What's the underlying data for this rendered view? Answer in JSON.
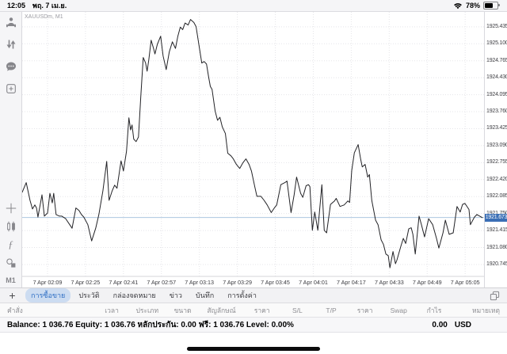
{
  "status_bar": {
    "time": "12:05",
    "date": "พฤ. 7 เม.ย.",
    "battery_percent": "78%"
  },
  "sidebar": {
    "timeframe": "M1",
    "indicator_glyph": "ƒ",
    "icons": [
      "trader-icon",
      "transfer-arrows-icon",
      "chat-icon",
      "new-order-icon",
      "crosshair-icon",
      "chart-type-icon",
      "indicators-icon",
      "objects-icon"
    ]
  },
  "chart": {
    "symbol_label": "XAUUSDm, M1"
  },
  "chart_data": {
    "type": "line",
    "title": "XAUUSDm, M1",
    "xlabel": "",
    "ylabel": "",
    "grid": "dotted",
    "ylim": [
      1920.51,
      1925.73
    ],
    "x_total_minutes": 193.4,
    "current_price": 1921.673,
    "y_ticks": [
      "1925.435",
      "1925.100",
      "1924.765",
      "1924.430",
      "1924.095",
      "1923.760",
      "1923.425",
      "1923.090",
      "1922.755",
      "1922.420",
      "1922.085",
      "1921.750",
      "1921.415",
      "1921.080",
      "1920.745"
    ],
    "x_ticks": [
      {
        "label": "7 Apr 02:09",
        "t": 10.6
      },
      {
        "label": "7 Apr 02:25",
        "t": 26.5
      },
      {
        "label": "7 Apr 02:41",
        "t": 42.4
      },
      {
        "label": "7 Apr 02:57",
        "t": 58.3
      },
      {
        "label": "7 Apr 03:13",
        "t": 74.2
      },
      {
        "label": "7 Apr 03:29",
        "t": 90.1
      },
      {
        "label": "7 Apr 03:45",
        "t": 106.0
      },
      {
        "label": "7 Apr 04:01",
        "t": 121.9
      },
      {
        "label": "7 Apr 04:17",
        "t": 137.8
      },
      {
        "label": "7 Apr 04:33",
        "t": 153.7
      },
      {
        "label": "7 Apr 04:49",
        "t": 169.6
      },
      {
        "label": "7 Apr 05:05",
        "t": 185.5
      }
    ],
    "series": [
      {
        "name": "XAUUSDm bid",
        "points": [
          [
            0,
            1922.17
          ],
          [
            1.7,
            1922.36
          ],
          [
            3.3,
            1922.01
          ],
          [
            4.3,
            1921.84
          ],
          [
            5.3,
            1921.92
          ],
          [
            6,
            1921.86
          ],
          [
            6.6,
            1921.68
          ],
          [
            8.3,
            1922.12
          ],
          [
            9.3,
            1921.7
          ],
          [
            10.6,
            1921.76
          ],
          [
            11.6,
            1922.15
          ],
          [
            12.6,
            1921.96
          ],
          [
            13.2,
            1922.15
          ],
          [
            14.2,
            1921.73
          ],
          [
            15.6,
            1921.7
          ],
          [
            16.6,
            1921.7
          ],
          [
            18.2,
            1921.65
          ],
          [
            19.9,
            1921.53
          ],
          [
            20.9,
            1921.46
          ],
          [
            22.5,
            1921.86
          ],
          [
            23.8,
            1921.81
          ],
          [
            24.8,
            1921.73
          ],
          [
            25.8,
            1921.68
          ],
          [
            27.5,
            1921.53
          ],
          [
            29.1,
            1921.21
          ],
          [
            30.8,
            1921.46
          ],
          [
            32.1,
            1921.73
          ],
          [
            33.8,
            1922.2
          ],
          [
            35.4,
            1922.78
          ],
          [
            36.4,
            1922.01
          ],
          [
            37.7,
            1922.2
          ],
          [
            38.7,
            1922.31
          ],
          [
            39.7,
            1922.25
          ],
          [
            41.4,
            1922.79
          ],
          [
            42.4,
            1922.59
          ],
          [
            43.7,
            1922.98
          ],
          [
            44.7,
            1923.64
          ],
          [
            45.4,
            1923.4
          ],
          [
            46,
            1923.5
          ],
          [
            46.7,
            1923.22
          ],
          [
            47.7,
            1923.17
          ],
          [
            48.7,
            1923.26
          ],
          [
            49.7,
            1924.08
          ],
          [
            50.7,
            1924.83
          ],
          [
            51.7,
            1924.72
          ],
          [
            52.3,
            1924.56
          ],
          [
            53,
            1924.78
          ],
          [
            54,
            1925.17
          ],
          [
            55,
            1925.01
          ],
          [
            55.6,
            1924.9
          ],
          [
            56.6,
            1925.09
          ],
          [
            58,
            1925.25
          ],
          [
            59,
            1924.86
          ],
          [
            60.3,
            1924.59
          ],
          [
            61.6,
            1924.94
          ],
          [
            62.9,
            1925.14
          ],
          [
            64.2,
            1925.01
          ],
          [
            65.2,
            1925.25
          ],
          [
            66.2,
            1925.43
          ],
          [
            67.2,
            1925.38
          ],
          [
            68.2,
            1925.51
          ],
          [
            69.5,
            1925.47
          ],
          [
            70.5,
            1925.58
          ],
          [
            71.9,
            1925.52
          ],
          [
            72.8,
            1925.44
          ],
          [
            74.2,
            1925.02
          ],
          [
            75.2,
            1924.72
          ],
          [
            76.2,
            1924.75
          ],
          [
            77.2,
            1924.7
          ],
          [
            78.1,
            1924.44
          ],
          [
            78.8,
            1924.26
          ],
          [
            79.5,
            1924.2
          ],
          [
            80.8,
            1923.77
          ],
          [
            81.8,
            1923.59
          ],
          [
            82.8,
            1923.65
          ],
          [
            83.8,
            1923.46
          ],
          [
            85.1,
            1923.33
          ],
          [
            86.1,
            1922.94
          ],
          [
            87.4,
            1922.89
          ],
          [
            88.4,
            1922.83
          ],
          [
            89.7,
            1922.72
          ],
          [
            91.1,
            1922.64
          ],
          [
            92.4,
            1922.75
          ],
          [
            93.7,
            1922.83
          ],
          [
            95,
            1922.72
          ],
          [
            96,
            1922.59
          ],
          [
            97.4,
            1922.28
          ],
          [
            98.3,
            1922.09
          ],
          [
            100,
            1922.09
          ],
          [
            101.3,
            1922.01
          ],
          [
            102.6,
            1921.92
          ],
          [
            104.3,
            1921.77
          ],
          [
            105.6,
            1921.86
          ],
          [
            106.6,
            1921.92
          ],
          [
            108.3,
            1922.32
          ],
          [
            110,
            1922.36
          ],
          [
            110.9,
            1922.39
          ],
          [
            112.6,
            1921.77
          ],
          [
            113.9,
            1922.12
          ],
          [
            114.9,
            1922.47
          ],
          [
            116.6,
            1922.15
          ],
          [
            117.5,
            1922.07
          ],
          [
            118.9,
            1922.3
          ],
          [
            119.9,
            1922.32
          ],
          [
            120.5,
            1922.28
          ],
          [
            121.5,
            1921.42
          ],
          [
            122.5,
            1921.78
          ],
          [
            123.8,
            1921.42
          ],
          [
            125.5,
            1922.32
          ],
          [
            126.5,
            1921.42
          ],
          [
            127.5,
            1921.37
          ],
          [
            129.1,
            1921.93
          ],
          [
            130.8,
            1922
          ],
          [
            131.5,
            1922.05
          ],
          [
            133.1,
            1921.89
          ],
          [
            134.8,
            1921.92
          ],
          [
            136.4,
            1922
          ],
          [
            137.1,
            1921.97
          ],
          [
            138,
            1922.6
          ],
          [
            139.1,
            1922.95
          ],
          [
            140.7,
            1923.11
          ],
          [
            141.7,
            1922.83
          ],
          [
            142.4,
            1922.67
          ],
          [
            143.6,
            1922.72
          ],
          [
            144.7,
            1922.47
          ],
          [
            145.4,
            1922.52
          ],
          [
            146.4,
            1922.01
          ],
          [
            148,
            1921.62
          ],
          [
            149,
            1921.53
          ],
          [
            150.3,
            1921.23
          ],
          [
            151.3,
            1921.14
          ],
          [
            152.3,
            1920.95
          ],
          [
            153.3,
            1920.92
          ],
          [
            154,
            1920.68
          ],
          [
            155.3,
            1921
          ],
          [
            156.3,
            1920.76
          ],
          [
            156.9,
            1920.83
          ],
          [
            158.6,
            1921.11
          ],
          [
            159.6,
            1921.26
          ],
          [
            160.6,
            1921.16
          ],
          [
            161.9,
            1921.45
          ],
          [
            162.9,
            1921.47
          ],
          [
            163.6,
            1921.34
          ],
          [
            164.6,
            1920.95
          ],
          [
            166.2,
            1921.7
          ],
          [
            167.2,
            1921.53
          ],
          [
            168.5,
            1921.29
          ],
          [
            170.2,
            1921.65
          ],
          [
            171.9,
            1921.53
          ],
          [
            173.5,
            1921.26
          ],
          [
            174.5,
            1921.07
          ],
          [
            176.2,
            1921.37
          ],
          [
            177.2,
            1921.62
          ],
          [
            178.8,
            1921.34
          ],
          [
            180.5,
            1921.37
          ],
          [
            182.1,
            1921.89
          ],
          [
            183.4,
            1921.78
          ],
          [
            184.4,
            1921.93
          ],
          [
            185.4,
            1921.95
          ],
          [
            187.1,
            1921.83
          ],
          [
            187.7,
            1921.53
          ],
          [
            189.4,
            1921.68
          ],
          [
            190.4,
            1921.73
          ],
          [
            192.7,
            1921.67
          ]
        ]
      }
    ]
  },
  "tabbar": {
    "add_button": "+",
    "tabs": [
      {
        "name": "tab-trade",
        "label": "การซื้อขาย",
        "active": true
      },
      {
        "name": "tab-history",
        "label": "ประวัติ",
        "active": false
      },
      {
        "name": "tab-mailbox",
        "label": "กล่องจดหมาย",
        "active": false
      },
      {
        "name": "tab-news",
        "label": "ข่าว",
        "active": false
      },
      {
        "name": "tab-journal",
        "label": "บันทึก",
        "active": false
      },
      {
        "name": "tab-settings",
        "label": "การตั้งค่า",
        "active": false
      }
    ]
  },
  "table": {
    "columns": [
      {
        "name": "col-order",
        "label": "คำสั่ง"
      },
      {
        "name": "col-time",
        "label": "เวลา"
      },
      {
        "name": "col-type",
        "label": "ประเภท"
      },
      {
        "name": "col-volume",
        "label": "ขนาด"
      },
      {
        "name": "col-symbol",
        "label": "สัญลักษณ์"
      },
      {
        "name": "col-price-open",
        "label": "ราคา"
      },
      {
        "name": "col-sl",
        "label": "S/L"
      },
      {
        "name": "col-tp",
        "label": "T/P"
      },
      {
        "name": "col-price-current",
        "label": "ราคา"
      },
      {
        "name": "col-swap",
        "label": "Swap"
      },
      {
        "name": "col-profit",
        "label": "กำไร"
      },
      {
        "name": "col-comment",
        "label": "หมายเหตุ"
      }
    ]
  },
  "account": {
    "summary": "Balance: 1 036.76 Equity: 1 036.76 หลักประกัน: 0.00 ฟรี: 1 036.76 Level: 0.00%",
    "profit": "0.00",
    "currency": "USD"
  },
  "colors": {
    "accent_blue": "#3b6fb5",
    "price_line": "#adc6e0",
    "active_tab_bg": "#ccdcf1",
    "active_tab_text": "#2f6fc4",
    "series_line": "#222226"
  }
}
